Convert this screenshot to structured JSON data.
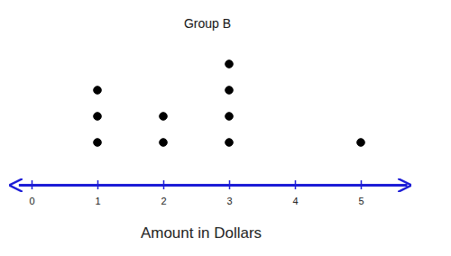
{
  "chart_data": {
    "type": "dot",
    "title": "Group B",
    "x_label": "Amount in Dollars",
    "x": [
      1,
      2,
      3,
      5
    ],
    "values": [
      3,
      2,
      4,
      1
    ],
    "color": "#000000",
    "marker": "circle",
    "xlim": [
      -0.2,
      5.7
    ],
    "xticks": [
      0,
      1,
      2,
      3,
      4,
      5
    ],
    "grid": false
  }
}
